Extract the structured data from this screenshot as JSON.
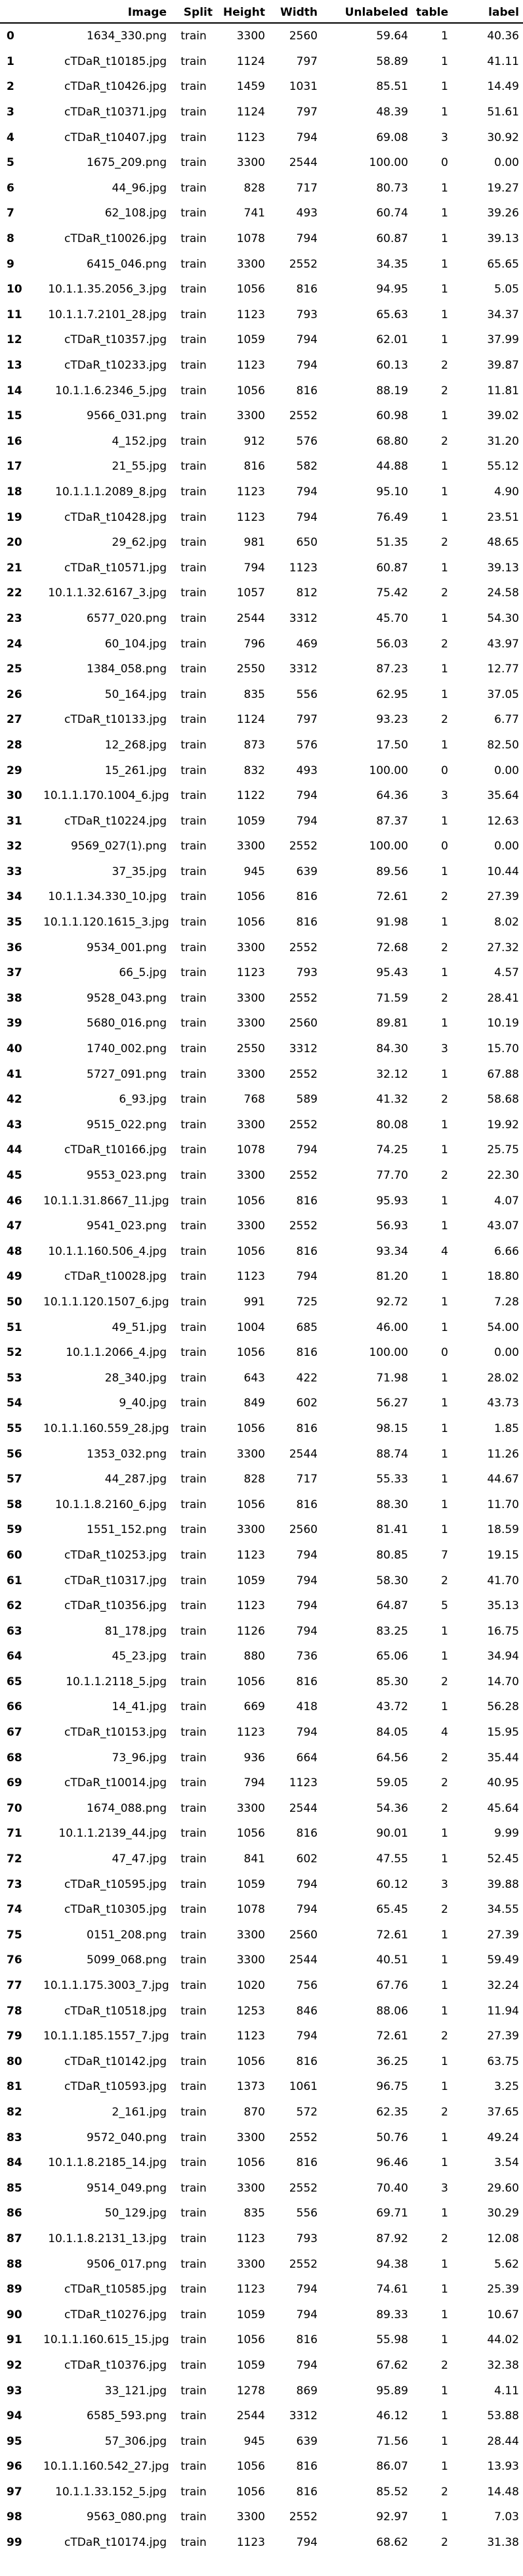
{
  "columns": [
    "",
    "Image",
    "Split",
    "Height",
    "Width",
    "Unlabeled",
    "table",
    "label"
  ],
  "rows": [
    [
      "0",
      "1634_330.png",
      "train",
      "3300",
      "2560",
      "59.64",
      "1",
      "40.36"
    ],
    [
      "1",
      "cTDaR_t10185.jpg",
      "train",
      "1124",
      "797",
      "58.89",
      "1",
      "41.11"
    ],
    [
      "2",
      "cTDaR_t10426.jpg",
      "train",
      "1459",
      "1031",
      "85.51",
      "1",
      "14.49"
    ],
    [
      "3",
      "cTDaR_t10371.jpg",
      "train",
      "1124",
      "797",
      "48.39",
      "1",
      "51.61"
    ],
    [
      "4",
      "cTDaR_t10407.jpg",
      "train",
      "1123",
      "794",
      "69.08",
      "3",
      "30.92"
    ],
    [
      "5",
      "1675_209.png",
      "train",
      "3300",
      "2544",
      "100.00",
      "0",
      "0.00"
    ],
    [
      "6",
      "44_96.jpg",
      "train",
      "828",
      "717",
      "80.73",
      "1",
      "19.27"
    ],
    [
      "7",
      "62_108.jpg",
      "train",
      "741",
      "493",
      "60.74",
      "1",
      "39.26"
    ],
    [
      "8",
      "cTDaR_t10026.jpg",
      "train",
      "1078",
      "794",
      "60.87",
      "1",
      "39.13"
    ],
    [
      "9",
      "6415_046.png",
      "train",
      "3300",
      "2552",
      "34.35",
      "1",
      "65.65"
    ],
    [
      "10",
      "10.1.1.35.2056_3.jpg",
      "train",
      "1056",
      "816",
      "94.95",
      "1",
      "5.05"
    ],
    [
      "11",
      "10.1.1.7.2101_28.jpg",
      "train",
      "1123",
      "793",
      "65.63",
      "1",
      "34.37"
    ],
    [
      "12",
      "cTDaR_t10357.jpg",
      "train",
      "1059",
      "794",
      "62.01",
      "1",
      "37.99"
    ],
    [
      "13",
      "cTDaR_t10233.jpg",
      "train",
      "1123",
      "794",
      "60.13",
      "2",
      "39.87"
    ],
    [
      "14",
      "10.1.1.6.2346_5.jpg",
      "train",
      "1056",
      "816",
      "88.19",
      "2",
      "11.81"
    ],
    [
      "15",
      "9566_031.png",
      "train",
      "3300",
      "2552",
      "60.98",
      "1",
      "39.02"
    ],
    [
      "16",
      "4_152.jpg",
      "train",
      "912",
      "576",
      "68.80",
      "2",
      "31.20"
    ],
    [
      "17",
      "21_55.jpg",
      "train",
      "816",
      "582",
      "44.88",
      "1",
      "55.12"
    ],
    [
      "18",
      "10.1.1.1.2089_8.jpg",
      "train",
      "1123",
      "794",
      "95.10",
      "1",
      "4.90"
    ],
    [
      "19",
      "cTDaR_t10428.jpg",
      "train",
      "1123",
      "794",
      "76.49",
      "1",
      "23.51"
    ],
    [
      "20",
      "29_62.jpg",
      "train",
      "981",
      "650",
      "51.35",
      "2",
      "48.65"
    ],
    [
      "21",
      "cTDaR_t10571.jpg",
      "train",
      "794",
      "1123",
      "60.87",
      "1",
      "39.13"
    ],
    [
      "22",
      "10.1.1.32.6167_3.jpg",
      "train",
      "1057",
      "812",
      "75.42",
      "2",
      "24.58"
    ],
    [
      "23",
      "6577_020.png",
      "train",
      "2544",
      "3312",
      "45.70",
      "1",
      "54.30"
    ],
    [
      "24",
      "60_104.jpg",
      "train",
      "796",
      "469",
      "56.03",
      "2",
      "43.97"
    ],
    [
      "25",
      "1384_058.png",
      "train",
      "2550",
      "3312",
      "87.23",
      "1",
      "12.77"
    ],
    [
      "26",
      "50_164.jpg",
      "train",
      "835",
      "556",
      "62.95",
      "1",
      "37.05"
    ],
    [
      "27",
      "cTDaR_t10133.jpg",
      "train",
      "1124",
      "797",
      "93.23",
      "2",
      "6.77"
    ],
    [
      "28",
      "12_268.jpg",
      "train",
      "873",
      "576",
      "17.50",
      "1",
      "82.50"
    ],
    [
      "29",
      "15_261.jpg",
      "train",
      "832",
      "493",
      "100.00",
      "0",
      "0.00"
    ],
    [
      "30",
      "10.1.1.170.1004_6.jpg",
      "train",
      "1122",
      "794",
      "64.36",
      "3",
      "35.64"
    ],
    [
      "31",
      "cTDaR_t10224.jpg",
      "train",
      "1059",
      "794",
      "87.37",
      "1",
      "12.63"
    ],
    [
      "32",
      "9569_027(1).png",
      "train",
      "3300",
      "2552",
      "100.00",
      "0",
      "0.00"
    ],
    [
      "33",
      "37_35.jpg",
      "train",
      "945",
      "639",
      "89.56",
      "1",
      "10.44"
    ],
    [
      "34",
      "10.1.1.34.330_10.jpg",
      "train",
      "1056",
      "816",
      "72.61",
      "2",
      "27.39"
    ],
    [
      "35",
      "10.1.1.120.1615_3.jpg",
      "train",
      "1056",
      "816",
      "91.98",
      "1",
      "8.02"
    ],
    [
      "36",
      "9534_001.png",
      "train",
      "3300",
      "2552",
      "72.68",
      "2",
      "27.32"
    ],
    [
      "37",
      "66_5.jpg",
      "train",
      "1123",
      "793",
      "95.43",
      "1",
      "4.57"
    ],
    [
      "38",
      "9528_043.png",
      "train",
      "3300",
      "2552",
      "71.59",
      "2",
      "28.41"
    ],
    [
      "39",
      "5680_016.png",
      "train",
      "3300",
      "2560",
      "89.81",
      "1",
      "10.19"
    ],
    [
      "40",
      "1740_002.png",
      "train",
      "2550",
      "3312",
      "84.30",
      "3",
      "15.70"
    ],
    [
      "41",
      "5727_091.png",
      "train",
      "3300",
      "2552",
      "32.12",
      "1",
      "67.88"
    ],
    [
      "42",
      "6_93.jpg",
      "train",
      "768",
      "589",
      "41.32",
      "2",
      "58.68"
    ],
    [
      "43",
      "9515_022.png",
      "train",
      "3300",
      "2552",
      "80.08",
      "1",
      "19.92"
    ],
    [
      "44",
      "cTDaR_t10166.jpg",
      "train",
      "1078",
      "794",
      "74.25",
      "1",
      "25.75"
    ],
    [
      "45",
      "9553_023.png",
      "train",
      "3300",
      "2552",
      "77.70",
      "2",
      "22.30"
    ],
    [
      "46",
      "10.1.1.31.8667_11.jpg",
      "train",
      "1056",
      "816",
      "95.93",
      "1",
      "4.07"
    ],
    [
      "47",
      "9541_023.png",
      "train",
      "3300",
      "2552",
      "56.93",
      "1",
      "43.07"
    ],
    [
      "48",
      "10.1.1.160.506_4.jpg",
      "train",
      "1056",
      "816",
      "93.34",
      "4",
      "6.66"
    ],
    [
      "49",
      "cTDaR_t10028.jpg",
      "train",
      "1123",
      "794",
      "81.20",
      "1",
      "18.80"
    ],
    [
      "50",
      "10.1.1.120.1507_6.jpg",
      "train",
      "991",
      "725",
      "92.72",
      "1",
      "7.28"
    ],
    [
      "51",
      "49_51.jpg",
      "train",
      "1004",
      "685",
      "46.00",
      "1",
      "54.00"
    ],
    [
      "52",
      "10.1.1.2066_4.jpg",
      "train",
      "1056",
      "816",
      "100.00",
      "0",
      "0.00"
    ],
    [
      "53",
      "28_340.jpg",
      "train",
      "643",
      "422",
      "71.98",
      "1",
      "28.02"
    ],
    [
      "54",
      "9_40.jpg",
      "train",
      "849",
      "602",
      "56.27",
      "1",
      "43.73"
    ],
    [
      "55",
      "10.1.1.160.559_28.jpg",
      "train",
      "1056",
      "816",
      "98.15",
      "1",
      "1.85"
    ],
    [
      "56",
      "1353_032.png",
      "train",
      "3300",
      "2544",
      "88.74",
      "1",
      "11.26"
    ],
    [
      "57",
      "44_287.jpg",
      "train",
      "828",
      "717",
      "55.33",
      "1",
      "44.67"
    ],
    [
      "58",
      "10.1.1.8.2160_6.jpg",
      "train",
      "1056",
      "816",
      "88.30",
      "1",
      "11.70"
    ],
    [
      "59",
      "1551_152.png",
      "train",
      "3300",
      "2560",
      "81.41",
      "1",
      "18.59"
    ],
    [
      "60",
      "cTDaR_t10253.jpg",
      "train",
      "1123",
      "794",
      "80.85",
      "7",
      "19.15"
    ],
    [
      "61",
      "cTDaR_t10317.jpg",
      "train",
      "1059",
      "794",
      "58.30",
      "2",
      "41.70"
    ],
    [
      "62",
      "cTDaR_t10356.jpg",
      "train",
      "1123",
      "794",
      "64.87",
      "5",
      "35.13"
    ],
    [
      "63",
      "81_178.jpg",
      "train",
      "1126",
      "794",
      "83.25",
      "1",
      "16.75"
    ],
    [
      "64",
      "45_23.jpg",
      "train",
      "880",
      "736",
      "65.06",
      "1",
      "34.94"
    ],
    [
      "65",
      "10.1.1.2118_5.jpg",
      "train",
      "1056",
      "816",
      "85.30",
      "2",
      "14.70"
    ],
    [
      "66",
      "14_41.jpg",
      "train",
      "669",
      "418",
      "43.72",
      "1",
      "56.28"
    ],
    [
      "67",
      "cTDaR_t10153.jpg",
      "train",
      "1123",
      "794",
      "84.05",
      "4",
      "15.95"
    ],
    [
      "68",
      "73_96.jpg",
      "train",
      "936",
      "664",
      "64.56",
      "2",
      "35.44"
    ],
    [
      "69",
      "cTDaR_t10014.jpg",
      "train",
      "794",
      "1123",
      "59.05",
      "2",
      "40.95"
    ],
    [
      "70",
      "1674_088.png",
      "train",
      "3300",
      "2544",
      "54.36",
      "2",
      "45.64"
    ],
    [
      "71",
      "10.1.1.2139_44.jpg",
      "train",
      "1056",
      "816",
      "90.01",
      "1",
      "9.99"
    ],
    [
      "72",
      "47_47.jpg",
      "train",
      "841",
      "602",
      "47.55",
      "1",
      "52.45"
    ],
    [
      "73",
      "cTDaR_t10595.jpg",
      "train",
      "1059",
      "794",
      "60.12",
      "3",
      "39.88"
    ],
    [
      "74",
      "cTDaR_t10305.jpg",
      "train",
      "1078",
      "794",
      "65.45",
      "2",
      "34.55"
    ],
    [
      "75",
      "0151_208.png",
      "train",
      "3300",
      "2560",
      "72.61",
      "1",
      "27.39"
    ],
    [
      "76",
      "5099_068.png",
      "train",
      "3300",
      "2544",
      "40.51",
      "1",
      "59.49"
    ],
    [
      "77",
      "10.1.1.175.3003_7.jpg",
      "train",
      "1020",
      "756",
      "67.76",
      "1",
      "32.24"
    ],
    [
      "78",
      "cTDaR_t10518.jpg",
      "train",
      "1253",
      "846",
      "88.06",
      "1",
      "11.94"
    ],
    [
      "79",
      "10.1.1.185.1557_7.jpg",
      "train",
      "1123",
      "794",
      "72.61",
      "2",
      "27.39"
    ],
    [
      "80",
      "cTDaR_t10142.jpg",
      "train",
      "1056",
      "816",
      "36.25",
      "1",
      "63.75"
    ],
    [
      "81",
      "cTDaR_t10593.jpg",
      "train",
      "1373",
      "1061",
      "96.75",
      "1",
      "3.25"
    ],
    [
      "82",
      "2_161.jpg",
      "train",
      "870",
      "572",
      "62.35",
      "2",
      "37.65"
    ],
    [
      "83",
      "9572_040.png",
      "train",
      "3300",
      "2552",
      "50.76",
      "1",
      "49.24"
    ],
    [
      "84",
      "10.1.1.8.2185_14.jpg",
      "train",
      "1056",
      "816",
      "96.46",
      "1",
      "3.54"
    ],
    [
      "85",
      "9514_049.png",
      "train",
      "3300",
      "2552",
      "70.40",
      "3",
      "29.60"
    ],
    [
      "86",
      "50_129.jpg",
      "train",
      "835",
      "556",
      "69.71",
      "1",
      "30.29"
    ],
    [
      "87",
      "10.1.1.8.2131_13.jpg",
      "train",
      "1123",
      "793",
      "87.92",
      "2",
      "12.08"
    ],
    [
      "88",
      "9506_017.png",
      "train",
      "3300",
      "2552",
      "94.38",
      "1",
      "5.62"
    ],
    [
      "89",
      "cTDaR_t10585.jpg",
      "train",
      "1123",
      "794",
      "74.61",
      "1",
      "25.39"
    ],
    [
      "90",
      "cTDaR_t10276.jpg",
      "train",
      "1059",
      "794",
      "89.33",
      "1",
      "10.67"
    ],
    [
      "91",
      "10.1.1.160.615_15.jpg",
      "train",
      "1056",
      "816",
      "55.98",
      "1",
      "44.02"
    ],
    [
      "92",
      "cTDaR_t10376.jpg",
      "train",
      "1059",
      "794",
      "67.62",
      "2",
      "32.38"
    ],
    [
      "93",
      "33_121.jpg",
      "train",
      "1278",
      "869",
      "95.89",
      "1",
      "4.11"
    ],
    [
      "94",
      "6585_593.png",
      "train",
      "2544",
      "3312",
      "46.12",
      "1",
      "53.88"
    ],
    [
      "95",
      "57_306.jpg",
      "train",
      "945",
      "639",
      "71.56",
      "1",
      "28.44"
    ],
    [
      "96",
      "10.1.1.160.542_27.jpg",
      "train",
      "1056",
      "816",
      "86.07",
      "1",
      "13.93"
    ],
    [
      "97",
      "10.1.1.33.152_5.jpg",
      "train",
      "1056",
      "816",
      "85.52",
      "2",
      "14.48"
    ],
    [
      "98",
      "9563_080.png",
      "train",
      "3300",
      "2552",
      "92.97",
      "1",
      "7.03"
    ],
    [
      "99",
      "cTDaR_t10174.jpg",
      "train",
      "1123",
      "794",
      "68.62",
      "2",
      "31.38"
    ]
  ]
}
